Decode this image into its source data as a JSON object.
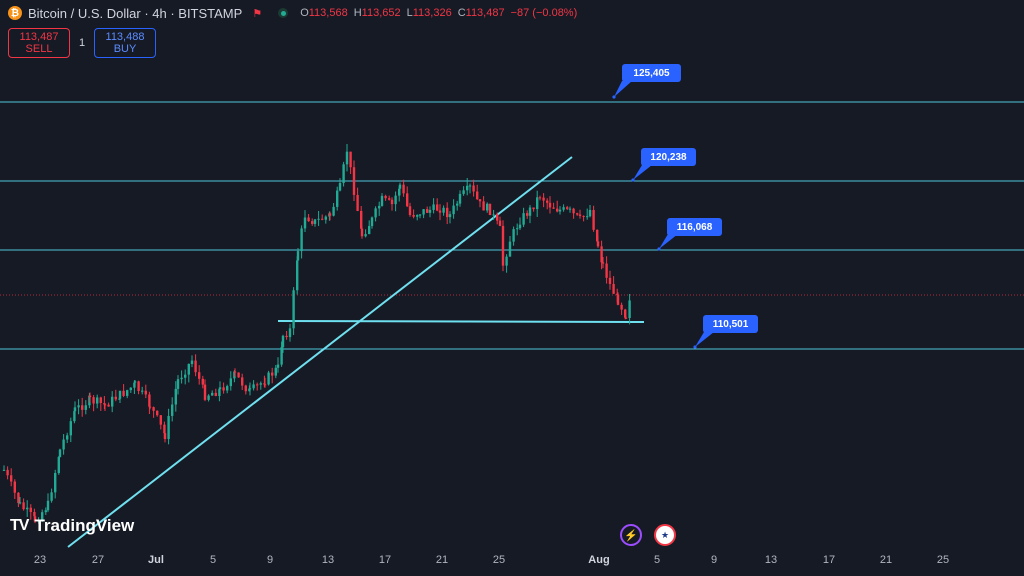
{
  "header": {
    "btc_glyph": "₿",
    "title": "Bitcoin / U.S. Dollar · 4h · BITSTAMP",
    "ohlc": [
      {
        "k": "O",
        "v": "113,568"
      },
      {
        "k": "H",
        "v": "113,652"
      },
      {
        "k": "L",
        "v": "113,326"
      },
      {
        "k": "C",
        "v": "113,487"
      },
      {
        "k": "",
        "v": "−87 (−0.08%)"
      }
    ]
  },
  "trade": {
    "sell_price": "113,487",
    "sell_label": "SELL",
    "quantity": "1",
    "buy_price": "113,488",
    "buy_label": "BUY"
  },
  "levels": [
    {
      "label": "125,405"
    },
    {
      "label": "120,238"
    },
    {
      "label": "116,068"
    },
    {
      "label": "110,501"
    }
  ],
  "xaxis": [
    "23",
    "27",
    "Jul",
    "5",
    "9",
    "13",
    "17",
    "21",
    "25",
    "Aug",
    "5",
    "9",
    "13",
    "17",
    "21",
    "25"
  ],
  "brand": "TradingView",
  "colors": {
    "up": "#22ab94",
    "down": "#f23645",
    "line": "#5fd4e8",
    "accent": "#2962ff"
  }
}
